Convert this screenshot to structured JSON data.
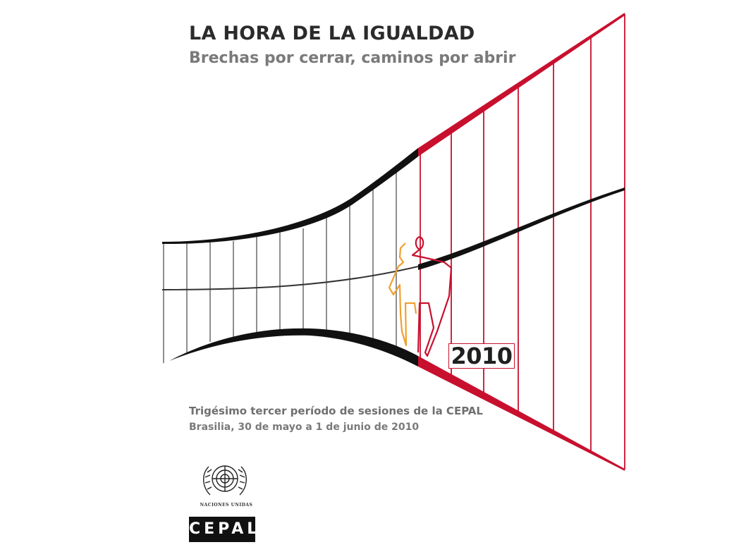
{
  "cover": {
    "title": "LA HORA DE LA IGUALDAD",
    "subtitle": "Brechas por cerrar, caminos por abrir",
    "year": "2010",
    "session": "Trigésimo tercer período de sesiones de la CEPAL",
    "place_date": "Brasilia, 30 de mayo a 1 de junio de 2010"
  },
  "logos": {
    "un_name": "NACIONES UNIDAS",
    "cepal": "CEPAL"
  },
  "colors": {
    "accent_red": "#c8102e",
    "figure_orange": "#f0a030",
    "ink": "#1a1a1a"
  },
  "icons": {
    "un": "un-emblem-icon",
    "human": "human-figure-icon"
  }
}
